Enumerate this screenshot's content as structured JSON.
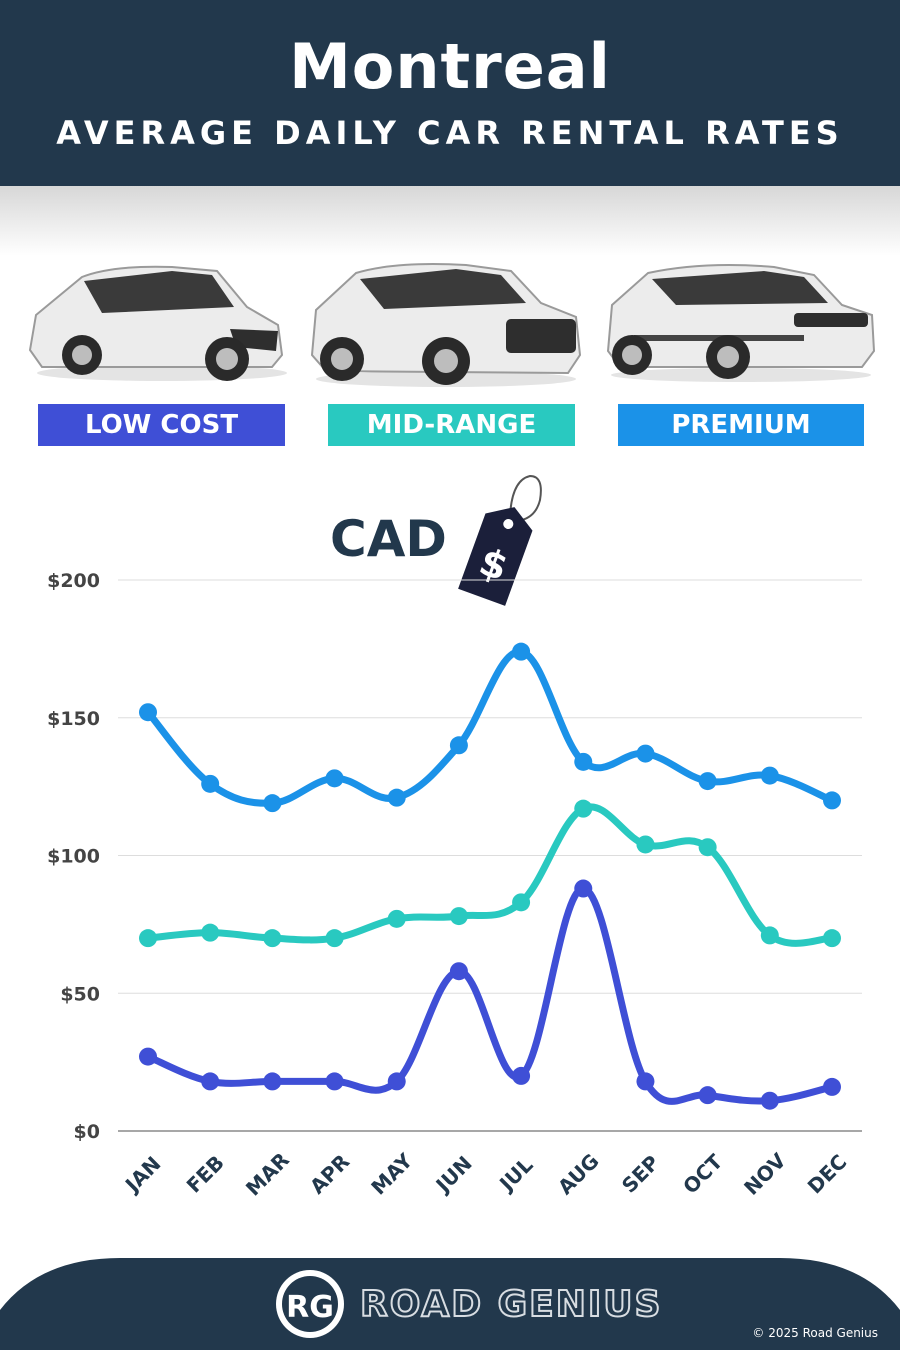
{
  "header": {
    "title": "Montreal",
    "subtitle": "AVERAGE DAILY CAR RENTAL RATES"
  },
  "categories": {
    "low": "LOW COST",
    "mid": "MID-RANGE",
    "premium": "PREMIUM"
  },
  "currency_label": "CAD",
  "price_tag_symbol": "$",
  "colors": {
    "header_bg": "#22384c",
    "low": "#3f4fd6",
    "mid": "#29c9c0",
    "premium": "#1b92e8"
  },
  "chart_data": {
    "type": "line",
    "title": "",
    "xlabel": "",
    "ylabel": "",
    "ylim": [
      0,
      200
    ],
    "yticks": [
      0,
      50,
      100,
      150,
      200
    ],
    "ytick_labels": [
      "$0",
      "$50",
      "$100",
      "$150",
      "$200"
    ],
    "categories": [
      "JAN",
      "FEB",
      "MAR",
      "APR",
      "MAY",
      "JUN",
      "JUL",
      "AUG",
      "SEP",
      "OCT",
      "NOV",
      "DEC"
    ],
    "grid": true,
    "legend": "top",
    "series": [
      {
        "name": "PREMIUM",
        "color": "#1b92e8",
        "values": [
          152,
          126,
          119,
          128,
          121,
          140,
          174,
          134,
          137,
          127,
          129,
          120
        ]
      },
      {
        "name": "MID-RANGE",
        "color": "#29c9c0",
        "values": [
          70,
          72,
          70,
          70,
          77,
          78,
          83,
          117,
          104,
          103,
          71,
          70
        ]
      },
      {
        "name": "LOW COST",
        "color": "#3f4fd6",
        "values": [
          27,
          18,
          18,
          18,
          18,
          58,
          20,
          88,
          18,
          13,
          11,
          16
        ]
      }
    ]
  },
  "footer": {
    "logo_letters": "RG",
    "brand": "ROAD GENIUS",
    "copyright": "© 2025 Road Genius"
  }
}
